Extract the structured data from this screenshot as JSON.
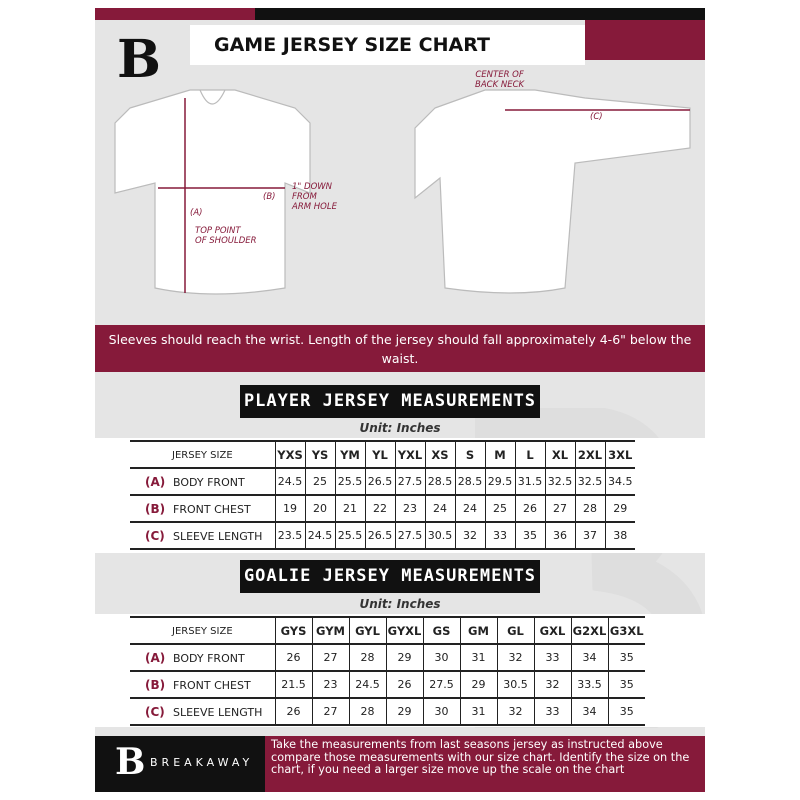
{
  "header": {
    "title": "GAME JERSEY SIZE CHART",
    "logo_letter": "B"
  },
  "diagram": {
    "front": {
      "label_a": "(A)",
      "label_a_desc": "TOP POINT\nOF SHOULDER",
      "label_b": "(B)",
      "label_b_desc": "1\" DOWN\nFROM\nARM HOLE"
    },
    "back": {
      "center_label": "CENTER OF\nBACK NECK",
      "label_c": "(C)"
    }
  },
  "banner": "Sleeves should reach the wrist. Length of the jersey should fall approximately 4-6\" below the waist.",
  "player": {
    "heading": "PLAYER JERSEY MEASUREMENTS",
    "unit": "Unit: Inches",
    "size_header": "JERSEY SIZE",
    "sizes": [
      "YXS",
      "YS",
      "YM",
      "YL",
      "YXL",
      "XS",
      "S",
      "M",
      "L",
      "XL",
      "2XL",
      "3XL"
    ],
    "rows": [
      {
        "key": "(A)",
        "label": "BODY FRONT",
        "values": [
          "24.5",
          "25",
          "25.5",
          "26.5",
          "27.5",
          "28.5",
          "28.5",
          "29.5",
          "31.5",
          "32.5",
          "32.5",
          "34.5"
        ]
      },
      {
        "key": "(B)",
        "label": "FRONT CHEST",
        "values": [
          "19",
          "20",
          "21",
          "22",
          "23",
          "24",
          "24",
          "25",
          "26",
          "27",
          "28",
          "29"
        ]
      },
      {
        "key": "(C)",
        "label": "SLEEVE LENGTH",
        "values": [
          "23.5",
          "24.5",
          "25.5",
          "26.5",
          "27.5",
          "30.5",
          "32",
          "33",
          "35",
          "36",
          "37",
          "38"
        ]
      }
    ]
  },
  "goalie": {
    "heading": "GOALIE JERSEY MEASUREMENTS",
    "unit": "Unit: Inches",
    "size_header": "JERSEY SIZE",
    "sizes": [
      "GYS",
      "GYM",
      "GYL",
      "GYXL",
      "GS",
      "GM",
      "GL",
      "GXL",
      "G2XL",
      "G3XL"
    ],
    "rows": [
      {
        "key": "(A)",
        "label": "BODY FRONT",
        "values": [
          "26",
          "27",
          "28",
          "29",
          "30",
          "31",
          "32",
          "33",
          "34",
          "35"
        ]
      },
      {
        "key": "(B)",
        "label": "FRONT CHEST",
        "values": [
          "21.5",
          "23",
          "24.5",
          "26",
          "27.5",
          "29",
          "30.5",
          "32",
          "33.5",
          "35"
        ]
      },
      {
        "key": "(C)",
        "label": "SLEEVE LENGTH",
        "values": [
          "26",
          "27",
          "28",
          "29",
          "30",
          "31",
          "32",
          "33",
          "34",
          "35"
        ]
      }
    ]
  },
  "footer": {
    "brand": "BREAKAWAY",
    "logo_letter": "B",
    "text": "Take the measurements from last seasons jersey as instructed above compare those measurements  with our size chart. Identify the size on the chart, if you need a larger size move up the scale on the chart"
  },
  "colors": {
    "accent": "#861a3a",
    "dark": "#111111",
    "background": "#e5e5e5"
  }
}
